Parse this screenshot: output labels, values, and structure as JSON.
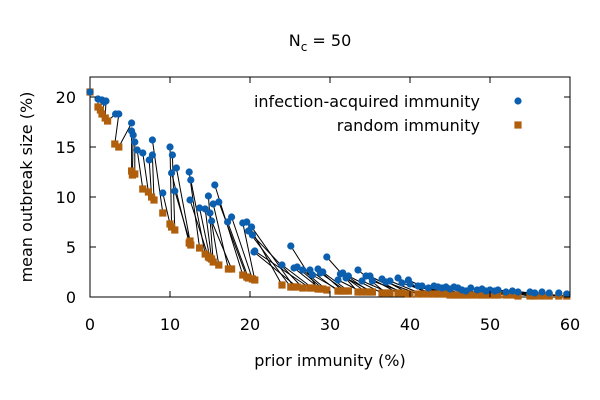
{
  "chart_data": {
    "type": "scatter",
    "title": {
      "prefix": "N",
      "subscript": "c",
      "suffix": " = 50"
    },
    "xlabel": "prior immunity (%)",
    "ylabel": "mean outbreak size (%)",
    "xlim": [
      0,
      60
    ],
    "ylim": [
      0,
      22
    ],
    "xticks": [
      0,
      10,
      20,
      30,
      40,
      50,
      60
    ],
    "yticks": [
      0,
      5,
      10,
      15,
      20
    ],
    "grid": false,
    "legend_position": "top-right",
    "series": [
      {
        "name": "infection-acquired immunity",
        "marker": "circle",
        "color": "#0b5fae",
        "points": [
          [
            0,
            20.5
          ],
          [
            1.0,
            19.8
          ],
          [
            1.5,
            19.7
          ],
          [
            1.8,
            19.5
          ],
          [
            2.0,
            19.6
          ],
          [
            3.2,
            18.3
          ],
          [
            3.6,
            18.3
          ],
          [
            5.2,
            17.4
          ],
          [
            5.2,
            16.6
          ],
          [
            5.4,
            16.2
          ],
          [
            5.6,
            15.5
          ],
          [
            5.9,
            14.7
          ],
          [
            6.6,
            14.4
          ],
          [
            7.4,
            13.7
          ],
          [
            7.8,
            14.2
          ],
          [
            7.8,
            15.7
          ],
          [
            9.1,
            10.4
          ],
          [
            10.0,
            15.0
          ],
          [
            10.3,
            14.2
          ],
          [
            10.2,
            12.4
          ],
          [
            10.8,
            12.9
          ],
          [
            10.6,
            10.6
          ],
          [
            12.4,
            12.5
          ],
          [
            12.6,
            11.7
          ],
          [
            12.5,
            9.7
          ],
          [
            13.7,
            8.9
          ],
          [
            14.4,
            8.8
          ],
          [
            14.8,
            10.1
          ],
          [
            15.0,
            8.4
          ],
          [
            15.4,
            9.3
          ],
          [
            15.2,
            7.6
          ],
          [
            15.6,
            11.2
          ],
          [
            16.1,
            9.5
          ],
          [
            17.2,
            7.5
          ],
          [
            17.7,
            8.0
          ],
          [
            19.1,
            7.4
          ],
          [
            19.6,
            7.5
          ],
          [
            19.8,
            6.6
          ],
          [
            20.2,
            7.0
          ],
          [
            20.5,
            4.5
          ],
          [
            20.3,
            6.2
          ],
          [
            20.6,
            4.6
          ],
          [
            24.0,
            3.2
          ],
          [
            25.1,
            5.1
          ],
          [
            25.5,
            2.9
          ],
          [
            25.9,
            3.0
          ],
          [
            26.6,
            2.7
          ],
          [
            27.5,
            2.7
          ],
          [
            27.8,
            2.2
          ],
          [
            28.5,
            2.8
          ],
          [
            28.8,
            2.4
          ],
          [
            29.1,
            2.5
          ],
          [
            29.6,
            4.0
          ],
          [
            31.0,
            1.7
          ],
          [
            31.3,
            2.3
          ],
          [
            31.6,
            2.4
          ],
          [
            32.0,
            1.9
          ],
          [
            32.3,
            2.1
          ],
          [
            33.5,
            2.7
          ],
          [
            34.0,
            1.6
          ],
          [
            34.5,
            2.1
          ],
          [
            35.0,
            2.1
          ],
          [
            35.3,
            1.6
          ],
          [
            36.5,
            1.8
          ],
          [
            37.0,
            1.5
          ],
          [
            37.5,
            1.6
          ],
          [
            38.5,
            1.9
          ],
          [
            39.0,
            1.4
          ],
          [
            39.8,
            1.7
          ],
          [
            40.0,
            1.3
          ],
          [
            41.0,
            1.1
          ],
          [
            41.5,
            1.1
          ],
          [
            42.3,
            0.9
          ],
          [
            43.0,
            1.1
          ],
          [
            43.5,
            1.0
          ],
          [
            44.0,
            0.9
          ],
          [
            44.5,
            1.0
          ],
          [
            45.0,
            0.8
          ],
          [
            45.5,
            1.0
          ],
          [
            46.0,
            0.9
          ],
          [
            46.5,
            0.7
          ],
          [
            47.0,
            0.6
          ],
          [
            47.6,
            0.9
          ],
          [
            48.4,
            0.7
          ],
          [
            49.0,
            0.8
          ],
          [
            49.5,
            0.6
          ],
          [
            50.0,
            0.7
          ],
          [
            50.6,
            0.6
          ],
          [
            51.0,
            0.7
          ],
          [
            52.0,
            0.5
          ],
          [
            52.8,
            0.6
          ],
          [
            53.5,
            0.5
          ],
          [
            55.0,
            0.5
          ],
          [
            55.6,
            0.4
          ],
          [
            56.5,
            0.5
          ],
          [
            57.4,
            0.4
          ],
          [
            58.6,
            0.4
          ],
          [
            59.6,
            0.3
          ]
        ]
      },
      {
        "name": "random immunity",
        "marker": "square",
        "color": "#b05f0c",
        "points": [
          [
            0,
            20.5
          ],
          [
            1.0,
            19.0
          ],
          [
            1.3,
            18.7
          ],
          [
            1.5,
            18.3
          ],
          [
            1.9,
            17.9
          ],
          [
            2.2,
            17.6
          ],
          [
            3.1,
            15.3
          ],
          [
            3.6,
            15.0
          ],
          [
            5.2,
            12.6
          ],
          [
            5.3,
            12.2
          ],
          [
            5.6,
            12.3
          ],
          [
            6.6,
            10.8
          ],
          [
            7.3,
            10.5
          ],
          [
            7.7,
            10.0
          ],
          [
            8.0,
            9.7
          ],
          [
            9.1,
            8.4
          ],
          [
            10.0,
            7.3
          ],
          [
            10.2,
            7.0
          ],
          [
            10.6,
            6.7
          ],
          [
            12.4,
            5.4
          ],
          [
            12.5,
            5.6
          ],
          [
            12.6,
            5.2
          ],
          [
            13.7,
            4.9
          ],
          [
            14.4,
            4.3
          ],
          [
            14.8,
            4.0
          ],
          [
            15.0,
            3.9
          ],
          [
            15.2,
            3.8
          ],
          [
            15.4,
            3.5
          ],
          [
            16.1,
            3.2
          ],
          [
            17.3,
            2.8
          ],
          [
            17.7,
            2.8
          ],
          [
            19.1,
            2.2
          ],
          [
            19.6,
            2.0
          ],
          [
            19.8,
            1.9
          ],
          [
            20.3,
            1.8
          ],
          [
            20.6,
            1.7
          ],
          [
            24.0,
            1.2
          ],
          [
            25.1,
            1.0
          ],
          [
            25.5,
            1.0
          ],
          [
            25.9,
            1.0
          ],
          [
            26.6,
            0.9
          ],
          [
            27.5,
            0.9
          ],
          [
            27.8,
            0.9
          ],
          [
            28.5,
            0.8
          ],
          [
            28.8,
            0.8
          ],
          [
            29.1,
            0.8
          ],
          [
            29.6,
            0.7
          ],
          [
            31.0,
            0.6
          ],
          [
            31.3,
            0.6
          ],
          [
            31.6,
            0.6
          ],
          [
            32.0,
            0.6
          ],
          [
            32.3,
            0.6
          ],
          [
            33.5,
            0.5
          ],
          [
            34.0,
            0.5
          ],
          [
            34.5,
            0.5
          ],
          [
            35.0,
            0.5
          ],
          [
            35.3,
            0.5
          ],
          [
            36.5,
            0.4
          ],
          [
            37.0,
            0.4
          ],
          [
            37.5,
            0.4
          ],
          [
            38.5,
            0.4
          ],
          [
            39.0,
            0.4
          ],
          [
            39.8,
            0.3
          ],
          [
            40.0,
            0.3
          ],
          [
            41.0,
            0.3
          ],
          [
            41.5,
            0.3
          ],
          [
            42.3,
            0.3
          ],
          [
            43.0,
            0.3
          ],
          [
            43.5,
            0.3
          ],
          [
            44.0,
            0.3
          ],
          [
            44.5,
            0.3
          ],
          [
            45.0,
            0.2
          ],
          [
            45.5,
            0.2
          ],
          [
            46.0,
            0.2
          ],
          [
            46.5,
            0.2
          ],
          [
            47.0,
            0.2
          ],
          [
            47.6,
            0.2
          ],
          [
            48.4,
            0.2
          ],
          [
            49.0,
            0.2
          ],
          [
            49.5,
            0.2
          ],
          [
            50.0,
            0.2
          ],
          [
            50.6,
            0.2
          ],
          [
            51.0,
            0.2
          ],
          [
            52.0,
            0.2
          ],
          [
            52.8,
            0.2
          ],
          [
            53.5,
            0.1
          ],
          [
            55.0,
            0.1
          ],
          [
            55.6,
            0.1
          ],
          [
            56.5,
            0.1
          ],
          [
            57.4,
            0.1
          ],
          [
            58.6,
            0.1
          ],
          [
            59.6,
            0.1
          ]
        ]
      }
    ]
  }
}
